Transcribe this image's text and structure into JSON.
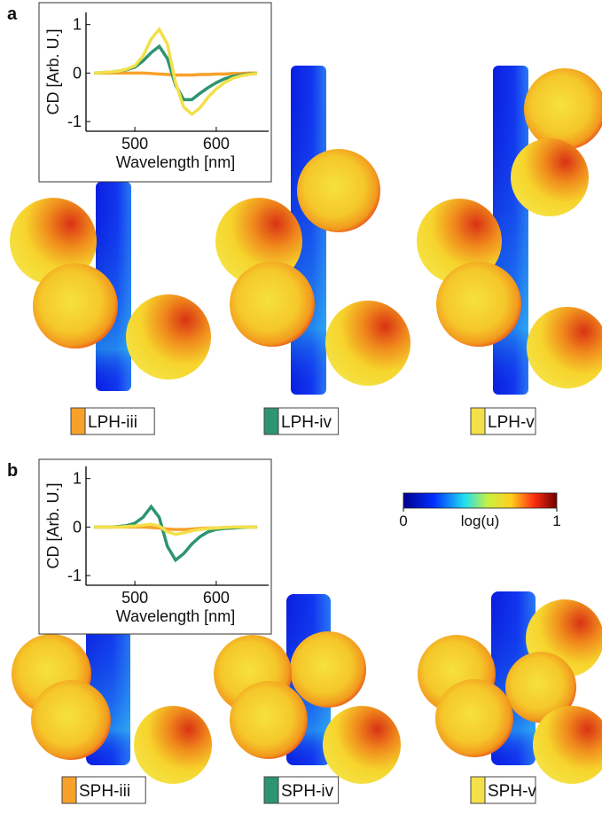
{
  "chart_data": [
    {
      "type": "line",
      "panel": "a",
      "xlabel": "Wavelength [nm]",
      "ylabel": "CD [Arb. U.]",
      "x": [
        450,
        460,
        470,
        480,
        490,
        500,
        510,
        520,
        530,
        540,
        550,
        560,
        570,
        580,
        590,
        600,
        610,
        620,
        630,
        640,
        650
      ],
      "xlim": [
        440,
        660
      ],
      "ylim": [
        -1.2,
        1.25
      ],
      "xticks": [
        500,
        600
      ],
      "yticks": [
        -1,
        0,
        1
      ],
      "series": [
        {
          "name": "LPH-iii",
          "color": "#f7a12a",
          "values": [
            0,
            0,
            0,
            0,
            0,
            0,
            0,
            -0.01,
            -0.02,
            -0.03,
            -0.04,
            -0.04,
            -0.04,
            -0.03,
            -0.03,
            -0.02,
            -0.02,
            -0.01,
            -0.01,
            0,
            0
          ]
        },
        {
          "name": "LPH-iv",
          "color": "#2e9472",
          "values": [
            0,
            0.01,
            0.02,
            0.04,
            0.07,
            0.12,
            0.25,
            0.42,
            0.55,
            0.3,
            -0.25,
            -0.55,
            -0.55,
            -0.42,
            -0.3,
            -0.2,
            -0.12,
            -0.07,
            -0.04,
            -0.02,
            -0.01
          ]
        },
        {
          "name": "LPH-v",
          "color": "#f3e04a",
          "values": [
            0,
            0.01,
            0.02,
            0.04,
            0.08,
            0.15,
            0.35,
            0.7,
            0.9,
            0.6,
            -0.2,
            -0.7,
            -0.85,
            -0.72,
            -0.5,
            -0.33,
            -0.2,
            -0.11,
            -0.06,
            -0.03,
            -0.01
          ]
        }
      ]
    },
    {
      "type": "line",
      "panel": "b",
      "xlabel": "Wavelength [nm]",
      "ylabel": "CD [Arb. U.]",
      "x": [
        450,
        460,
        470,
        480,
        490,
        500,
        510,
        520,
        530,
        540,
        550,
        560,
        570,
        580,
        590,
        600,
        610,
        620,
        630,
        640,
        650
      ],
      "xlim": [
        440,
        660
      ],
      "ylim": [
        -1.2,
        1.25
      ],
      "xticks": [
        500,
        600
      ],
      "yticks": [
        -1,
        0,
        1
      ],
      "series": [
        {
          "name": "SPH-iii",
          "color": "#f7a12a",
          "values": [
            0,
            0,
            0,
            0,
            0,
            0,
            0,
            -0.01,
            -0.02,
            -0.04,
            -0.05,
            -0.05,
            -0.04,
            -0.03,
            -0.02,
            -0.02,
            -0.01,
            -0.01,
            0,
            0,
            0
          ]
        },
        {
          "name": "SPH-iv",
          "color": "#2e9472",
          "values": [
            0,
            0,
            0,
            0.01,
            0.03,
            0.08,
            0.2,
            0.42,
            0.2,
            -0.4,
            -0.68,
            -0.55,
            -0.35,
            -0.2,
            -0.1,
            -0.05,
            -0.03,
            -0.02,
            -0.01,
            0,
            0
          ]
        },
        {
          "name": "SPH-v",
          "color": "#f3e04a",
          "values": [
            0,
            0,
            0,
            0,
            0.01,
            0.02,
            0.04,
            0.06,
            0.02,
            -0.1,
            -0.15,
            -0.12,
            -0.08,
            -0.05,
            -0.03,
            -0.02,
            -0.01,
            0,
            0,
            0,
            0
          ]
        }
      ]
    }
  ],
  "colorbar": {
    "label": "log(u)",
    "lim": [
      0,
      1
    ],
    "ticks": [
      0,
      1
    ]
  }
}
